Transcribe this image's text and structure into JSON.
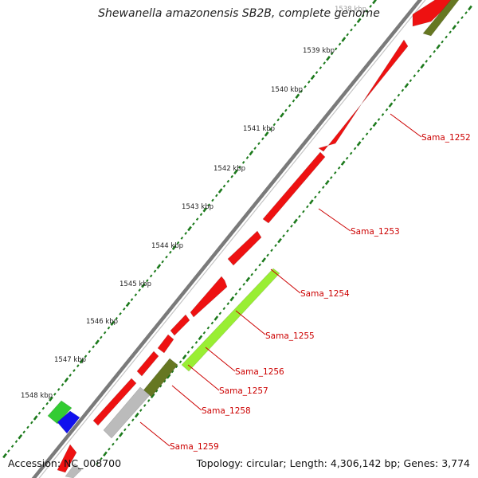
{
  "title": "Shewanella amazonensis SB2B, complete genome",
  "footer": {
    "accession": "Accession: NC_008700",
    "topology": "Topology: circular; Length: 4,306,142 bp; Genes: 3,774"
  },
  "ticks": [
    "1538 kbp",
    "1539 kbp",
    "1540 kbp",
    "1541 kbp",
    "1542 kbp",
    "1543 kbp",
    "1544 kbp",
    "1545 kbp",
    "1546 kbp",
    "1547 kbp",
    "1548 kbp"
  ],
  "genes": [
    {
      "label": "Sama_1252",
      "color": "#ee1111"
    },
    {
      "label": "Sama_1253",
      "color": "#ee1111"
    },
    {
      "label": "Sama_1254",
      "color": "#ee1111"
    },
    {
      "label": "Sama_1255",
      "color": "#99ee33"
    },
    {
      "label": "Sama_1256",
      "color": "#ee1111"
    },
    {
      "label": "Sama_1257",
      "color": "#667722"
    },
    {
      "label": "Sama_1258",
      "color": "#ee1111"
    },
    {
      "label": "Sama_1259",
      "color": "#bbbbbb"
    }
  ],
  "colors": {
    "backbone": "#777777",
    "tick_green": "#1c7a1c",
    "label_red": "#cc0000"
  }
}
